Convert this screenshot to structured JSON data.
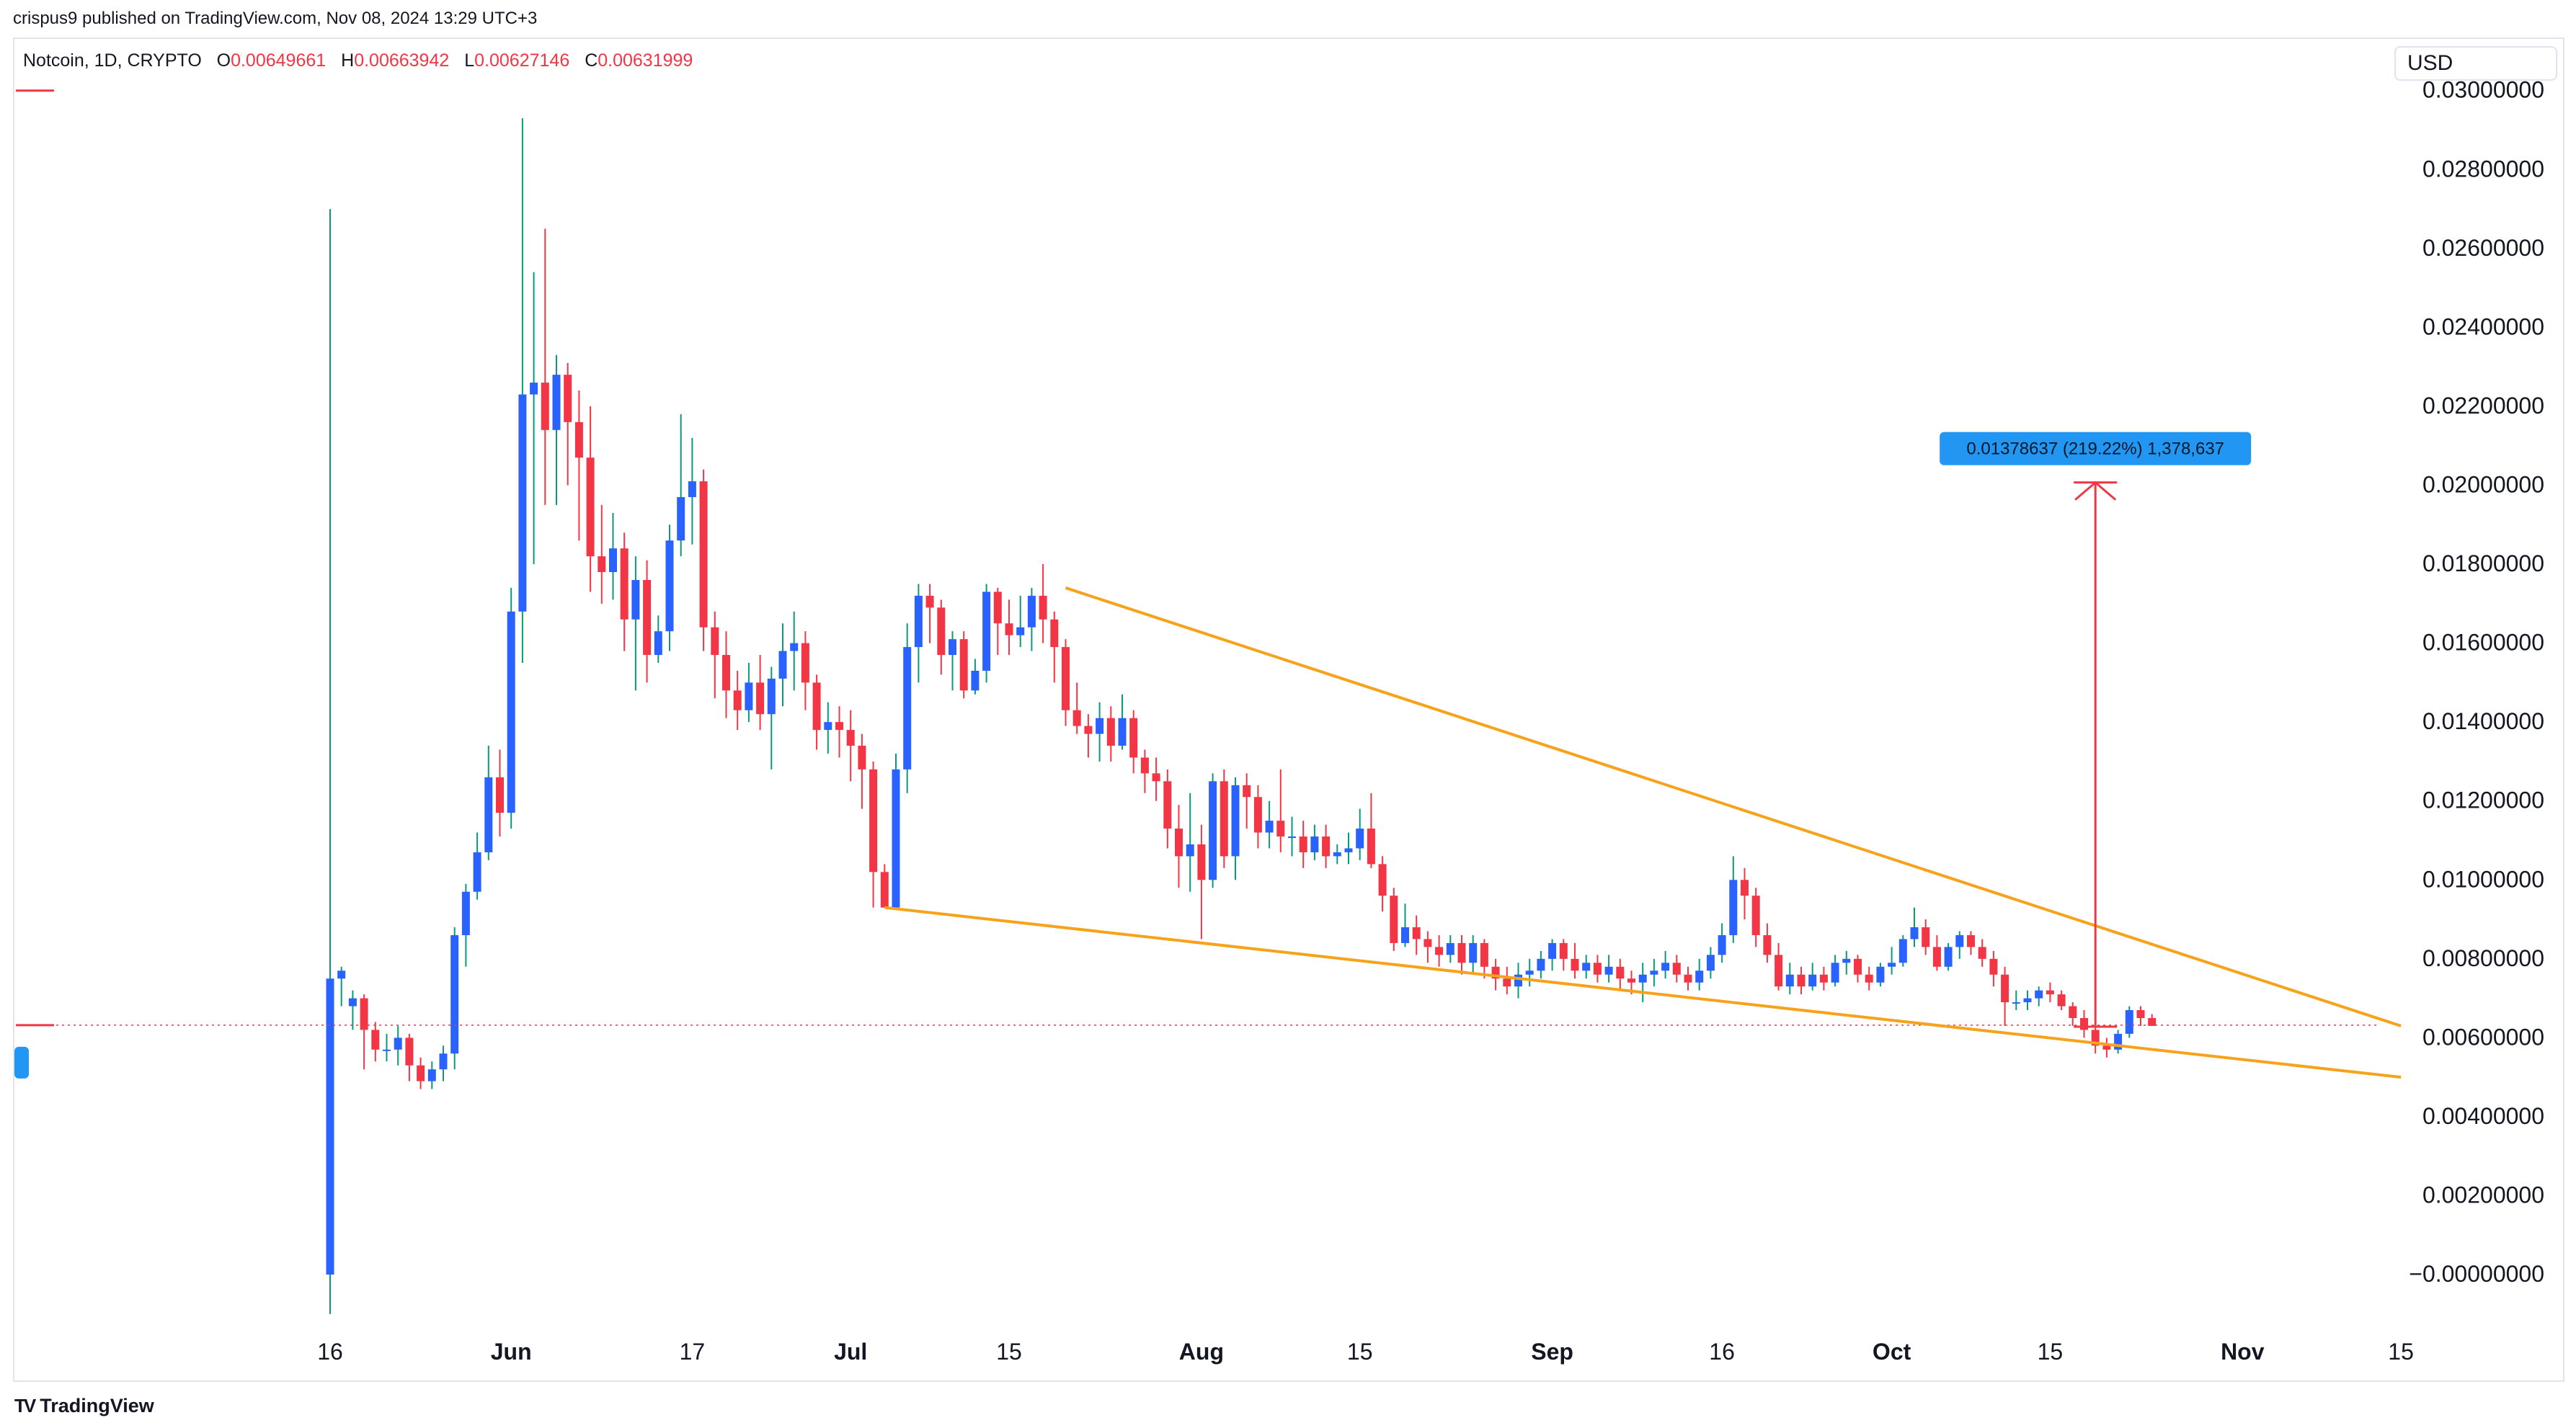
{
  "header": {
    "published_by": "crispus9 published on TradingView.com, Nov 08, 2024 13:29 UTC+3"
  },
  "symbol": {
    "name": "Notcoin, 1D, CRYPTO",
    "open_label": "O",
    "open": "0.00649661",
    "high_label": "H",
    "high": "0.00663942",
    "low_label": "L",
    "low": "0.00627146",
    "close_label": "C",
    "close": "0.00631999"
  },
  "currency": "USD",
  "footer": {
    "brand": "TradingView",
    "logo_glyph": "TV"
  },
  "measure": {
    "label": "0.01378637 (219.22%) 1,378,637",
    "from": 0.00628,
    "to": 0.02007
  },
  "colors": {
    "up": "#2962ff",
    "down": "#f23645",
    "wick_up": "#089981",
    "trendline": "#f7a21b",
    "measure": "#f23645",
    "label_bg": "#2196f3",
    "grid": "#ffffff"
  },
  "chart_data": {
    "type": "candlestick",
    "interval": "1D",
    "ylim": [
      -0.0002,
      0.0312
    ],
    "y_ticks": [
      "0.03000000",
      "0.02800000",
      "0.02600000",
      "0.02400000",
      "0.02200000",
      "0.02000000",
      "0.01800000",
      "0.01600000",
      "0.01400000",
      "0.01200000",
      "0.01000000",
      "0.00800000",
      "0.00600000",
      "0.00400000",
      "0.00200000",
      "−0.00000000"
    ],
    "y_tick_values": [
      0.03,
      0.028,
      0.026,
      0.024,
      0.022,
      0.02,
      0.018,
      0.016,
      0.014,
      0.012,
      0.01,
      0.008,
      0.006,
      0.004,
      0.002,
      0
    ],
    "x_start_date": "2024-05-16",
    "x_ticks": [
      {
        "label": "16",
        "date": "2024-05-16"
      },
      {
        "label": "Jun",
        "date": "2024-06-01"
      },
      {
        "label": "17",
        "date": "2024-06-17"
      },
      {
        "label": "Jul",
        "date": "2024-07-01"
      },
      {
        "label": "15",
        "date": "2024-07-15"
      },
      {
        "label": "Aug",
        "date": "2024-08-01"
      },
      {
        "label": "15",
        "date": "2024-08-15"
      },
      {
        "label": "Sep",
        "date": "2024-09-01"
      },
      {
        "label": "16",
        "date": "2024-09-16"
      },
      {
        "label": "Oct",
        "date": "2024-10-01"
      },
      {
        "label": "15",
        "date": "2024-10-15"
      },
      {
        "label": "Nov",
        "date": "2024-11-01"
      },
      {
        "label": "15",
        "date": "2024-11-15"
      }
    ],
    "last_close": 0.00632,
    "candles_ohlc": [
      [
        0.0,
        0.0075,
        0.027,
        -0.001
      ],
      [
        0.0075,
        0.0077,
        0.0078,
        0.0068
      ],
      [
        0.0068,
        0.007,
        0.0072,
        0.0062
      ],
      [
        0.007,
        0.0062,
        0.0071,
        0.0052
      ],
      [
        0.0062,
        0.0057,
        0.0064,
        0.0054
      ],
      [
        0.0057,
        0.0057,
        0.0061,
        0.0054
      ],
      [
        0.0057,
        0.006,
        0.0063,
        0.0053
      ],
      [
        0.006,
        0.0053,
        0.0061,
        0.0049
      ],
      [
        0.0053,
        0.0049,
        0.0055,
        0.0047
      ],
      [
        0.0049,
        0.0052,
        0.0054,
        0.0047
      ],
      [
        0.0052,
        0.0056,
        0.0058,
        0.0049
      ],
      [
        0.0056,
        0.0086,
        0.0088,
        0.0052
      ],
      [
        0.0086,
        0.0097,
        0.0099,
        0.0078
      ],
      [
        0.0097,
        0.0107,
        0.0112,
        0.0095
      ],
      [
        0.0107,
        0.0126,
        0.0134,
        0.0105
      ],
      [
        0.0126,
        0.0117,
        0.0133,
        0.0111
      ],
      [
        0.0117,
        0.0168,
        0.0174,
        0.0113
      ],
      [
        0.0168,
        0.0223,
        0.0293,
        0.0155
      ],
      [
        0.0223,
        0.0226,
        0.0254,
        0.018
      ],
      [
        0.0226,
        0.0214,
        0.0265,
        0.0195
      ],
      [
        0.0214,
        0.0228,
        0.0233,
        0.0195
      ],
      [
        0.0228,
        0.0216,
        0.0231,
        0.02
      ],
      [
        0.0216,
        0.0207,
        0.0224,
        0.0186
      ],
      [
        0.0207,
        0.0182,
        0.022,
        0.0173
      ],
      [
        0.0182,
        0.0178,
        0.0195,
        0.017
      ],
      [
        0.0178,
        0.0184,
        0.0193,
        0.0171
      ],
      [
        0.0184,
        0.0166,
        0.0188,
        0.0158
      ],
      [
        0.0166,
        0.0176,
        0.0182,
        0.0148
      ],
      [
        0.0176,
        0.0157,
        0.0181,
        0.015
      ],
      [
        0.0157,
        0.0163,
        0.0167,
        0.0155
      ],
      [
        0.0163,
        0.0186,
        0.019,
        0.0158
      ],
      [
        0.0186,
        0.0197,
        0.0218,
        0.0182
      ],
      [
        0.0197,
        0.0201,
        0.0212,
        0.0185
      ],
      [
        0.0201,
        0.0164,
        0.0204,
        0.0158
      ],
      [
        0.0164,
        0.0157,
        0.0168,
        0.0146
      ],
      [
        0.0157,
        0.0148,
        0.0163,
        0.0141
      ],
      [
        0.0148,
        0.0143,
        0.0153,
        0.0138
      ],
      [
        0.0143,
        0.015,
        0.0155,
        0.014
      ],
      [
        0.015,
        0.0142,
        0.0157,
        0.0138
      ],
      [
        0.0142,
        0.0151,
        0.0154,
        0.0128
      ],
      [
        0.0151,
        0.0158,
        0.0165,
        0.0144
      ],
      [
        0.0158,
        0.016,
        0.0168,
        0.0148
      ],
      [
        0.016,
        0.015,
        0.0163,
        0.0143
      ],
      [
        0.015,
        0.0138,
        0.0152,
        0.0133
      ],
      [
        0.0138,
        0.014,
        0.0145,
        0.0132
      ],
      [
        0.014,
        0.0138,
        0.0144,
        0.0131
      ],
      [
        0.0138,
        0.0134,
        0.0143,
        0.0125
      ],
      [
        0.0134,
        0.0128,
        0.0137,
        0.0118
      ],
      [
        0.0128,
        0.0102,
        0.013,
        0.0093
      ],
      [
        0.0102,
        0.0093,
        0.0104,
        0.0093
      ],
      [
        0.0093,
        0.0128,
        0.0132,
        0.0093
      ],
      [
        0.0128,
        0.0159,
        0.0165,
        0.0122
      ],
      [
        0.0159,
        0.0172,
        0.0175,
        0.015
      ],
      [
        0.0172,
        0.0169,
        0.0175,
        0.016
      ],
      [
        0.0169,
        0.0157,
        0.0171,
        0.0152
      ],
      [
        0.0157,
        0.0161,
        0.0163,
        0.0148
      ],
      [
        0.0161,
        0.0148,
        0.0163,
        0.0146
      ],
      [
        0.0148,
        0.0153,
        0.0156,
        0.0147
      ],
      [
        0.0153,
        0.0173,
        0.0175,
        0.015
      ],
      [
        0.0173,
        0.0165,
        0.0174,
        0.0157
      ],
      [
        0.0165,
        0.0162,
        0.0171,
        0.0157
      ],
      [
        0.0162,
        0.0164,
        0.0172,
        0.0159
      ],
      [
        0.0164,
        0.0172,
        0.0174,
        0.0158
      ],
      [
        0.0172,
        0.0166,
        0.018,
        0.016
      ],
      [
        0.0166,
        0.0159,
        0.0168,
        0.015
      ],
      [
        0.0159,
        0.0143,
        0.0161,
        0.0139
      ],
      [
        0.0143,
        0.0139,
        0.015,
        0.0137
      ],
      [
        0.0139,
        0.0137,
        0.0142,
        0.0131
      ],
      [
        0.0137,
        0.0141,
        0.0145,
        0.013
      ],
      [
        0.0141,
        0.0134,
        0.0144,
        0.013
      ],
      [
        0.0134,
        0.0141,
        0.0147,
        0.0133
      ],
      [
        0.0141,
        0.0131,
        0.0143,
        0.0127
      ],
      [
        0.0131,
        0.0127,
        0.0133,
        0.0122
      ],
      [
        0.0127,
        0.0125,
        0.0131,
        0.012
      ],
      [
        0.0125,
        0.0113,
        0.0128,
        0.0108
      ],
      [
        0.0113,
        0.0106,
        0.0119,
        0.0098
      ],
      [
        0.0106,
        0.0109,
        0.0122,
        0.0097
      ],
      [
        0.0109,
        0.01,
        0.0114,
        0.0085
      ],
      [
        0.01,
        0.0125,
        0.0127,
        0.0098
      ],
      [
        0.0125,
        0.0106,
        0.0128,
        0.0103
      ],
      [
        0.0106,
        0.0124,
        0.0126,
        0.01
      ],
      [
        0.0124,
        0.0121,
        0.0127,
        0.0113
      ],
      [
        0.0121,
        0.0112,
        0.0124,
        0.0108
      ],
      [
        0.0112,
        0.0115,
        0.012,
        0.0108
      ],
      [
        0.0115,
        0.0111,
        0.0128,
        0.0107
      ],
      [
        0.0111,
        0.0111,
        0.0116,
        0.0106
      ],
      [
        0.0111,
        0.0107,
        0.0115,
        0.0103
      ],
      [
        0.0107,
        0.0111,
        0.0114,
        0.0105
      ],
      [
        0.0111,
        0.0106,
        0.0114,
        0.0103
      ],
      [
        0.0106,
        0.0107,
        0.0109,
        0.0104
      ],
      [
        0.0107,
        0.0108,
        0.0112,
        0.0104
      ],
      [
        0.0108,
        0.0113,
        0.0118,
        0.0105
      ],
      [
        0.0113,
        0.0104,
        0.0122,
        0.0103
      ],
      [
        0.0104,
        0.0096,
        0.0106,
        0.0092
      ],
      [
        0.0096,
        0.0084,
        0.0098,
        0.0082
      ],
      [
        0.0084,
        0.0088,
        0.0094,
        0.0083
      ],
      [
        0.0088,
        0.0085,
        0.0091,
        0.0081
      ],
      [
        0.0085,
        0.0083,
        0.0087,
        0.0079
      ],
      [
        0.0083,
        0.0081,
        0.0086,
        0.0078
      ],
      [
        0.0081,
        0.0084,
        0.0086,
        0.0079
      ],
      [
        0.0084,
        0.0079,
        0.0086,
        0.0076
      ],
      [
        0.0079,
        0.0084,
        0.0086,
        0.0076
      ],
      [
        0.0084,
        0.0078,
        0.0085,
        0.0075
      ],
      [
        0.0078,
        0.0075,
        0.008,
        0.0072
      ],
      [
        0.0075,
        0.0073,
        0.0078,
        0.0071
      ],
      [
        0.0073,
        0.0076,
        0.0079,
        0.007
      ],
      [
        0.0076,
        0.0077,
        0.008,
        0.0073
      ],
      [
        0.0077,
        0.008,
        0.0082,
        0.0075
      ],
      [
        0.008,
        0.0084,
        0.0085,
        0.0077
      ],
      [
        0.0084,
        0.008,
        0.0085,
        0.0077
      ],
      [
        0.008,
        0.0077,
        0.0084,
        0.0075
      ],
      [
        0.0077,
        0.0079,
        0.0081,
        0.0075
      ],
      [
        0.0079,
        0.0076,
        0.0081,
        0.0074
      ],
      [
        0.0076,
        0.0078,
        0.0081,
        0.0074
      ],
      [
        0.0078,
        0.0075,
        0.008,
        0.0072
      ],
      [
        0.0075,
        0.0074,
        0.0077,
        0.0071
      ],
      [
        0.0074,
        0.0076,
        0.0079,
        0.0069
      ],
      [
        0.0076,
        0.0077,
        0.008,
        0.0073
      ],
      [
        0.0077,
        0.0079,
        0.0082,
        0.0075
      ],
      [
        0.0079,
        0.0076,
        0.0081,
        0.0074
      ],
      [
        0.0076,
        0.0074,
        0.0078,
        0.0072
      ],
      [
        0.0074,
        0.0077,
        0.008,
        0.0072
      ],
      [
        0.0077,
        0.0081,
        0.0083,
        0.0075
      ],
      [
        0.0081,
        0.0086,
        0.0089,
        0.0079
      ],
      [
        0.0086,
        0.01,
        0.0106,
        0.0084
      ],
      [
        0.01,
        0.0096,
        0.0103,
        0.009
      ],
      [
        0.0096,
        0.0086,
        0.0098,
        0.0083
      ],
      [
        0.0086,
        0.0081,
        0.0089,
        0.0079
      ],
      [
        0.0081,
        0.0073,
        0.0084,
        0.0072
      ],
      [
        0.0073,
        0.0076,
        0.0079,
        0.0071
      ],
      [
        0.0076,
        0.0073,
        0.0078,
        0.0071
      ],
      [
        0.0073,
        0.0076,
        0.0079,
        0.0072
      ],
      [
        0.0076,
        0.0074,
        0.0078,
        0.0072
      ],
      [
        0.0074,
        0.0079,
        0.0081,
        0.0073
      ],
      [
        0.0079,
        0.008,
        0.0082,
        0.0076
      ],
      [
        0.008,
        0.0076,
        0.0081,
        0.0074
      ],
      [
        0.0076,
        0.0074,
        0.0078,
        0.0072
      ],
      [
        0.0074,
        0.0078,
        0.0079,
        0.0073
      ],
      [
        0.0078,
        0.0079,
        0.0083,
        0.0076
      ],
      [
        0.0079,
        0.0085,
        0.0086,
        0.0078
      ],
      [
        0.0085,
        0.0088,
        0.0093,
        0.0083
      ],
      [
        0.0088,
        0.0083,
        0.009,
        0.0081
      ],
      [
        0.0083,
        0.0078,
        0.0086,
        0.0077
      ],
      [
        0.0078,
        0.0083,
        0.0084,
        0.0077
      ],
      [
        0.0083,
        0.0086,
        0.0087,
        0.008
      ],
      [
        0.0086,
        0.0083,
        0.0087,
        0.0081
      ],
      [
        0.0083,
        0.008,
        0.0085,
        0.0078
      ],
      [
        0.008,
        0.0076,
        0.0082,
        0.0073
      ],
      [
        0.0076,
        0.0069,
        0.0078,
        0.0063
      ],
      [
        0.0069,
        0.0069,
        0.0072,
        0.0067
      ],
      [
        0.0069,
        0.007,
        0.0072,
        0.0067
      ],
      [
        0.007,
        0.0072,
        0.0073,
        0.0068
      ],
      [
        0.0072,
        0.0071,
        0.0074,
        0.0069
      ],
      [
        0.0071,
        0.0068,
        0.0072,
        0.0067
      ],
      [
        0.0068,
        0.0065,
        0.0069,
        0.0063
      ],
      [
        0.0065,
        0.0062,
        0.0067,
        0.006
      ],
      [
        0.0062,
        0.0058,
        0.0063,
        0.0056
      ],
      [
        0.0058,
        0.0057,
        0.006,
        0.0055
      ],
      [
        0.0057,
        0.0061,
        0.0062,
        0.0056
      ],
      [
        0.0061,
        0.0067,
        0.0068,
        0.006
      ],
      [
        0.0067,
        0.0065,
        0.0068,
        0.0063
      ],
      [
        0.0065,
        0.0063,
        0.0066,
        0.0063
      ]
    ],
    "trendlines": [
      {
        "name": "upper",
        "from": {
          "date": "2024-07-20",
          "value": 0.0174
        },
        "to": {
          "date": "2024-11-15",
          "value": 0.0063
        }
      },
      {
        "name": "lower",
        "from": {
          "date": "2024-07-04",
          "value": 0.0093
        },
        "to": {
          "date": "2024-11-15",
          "value": 0.005
        }
      }
    ],
    "measure_date": "2024-10-19"
  }
}
